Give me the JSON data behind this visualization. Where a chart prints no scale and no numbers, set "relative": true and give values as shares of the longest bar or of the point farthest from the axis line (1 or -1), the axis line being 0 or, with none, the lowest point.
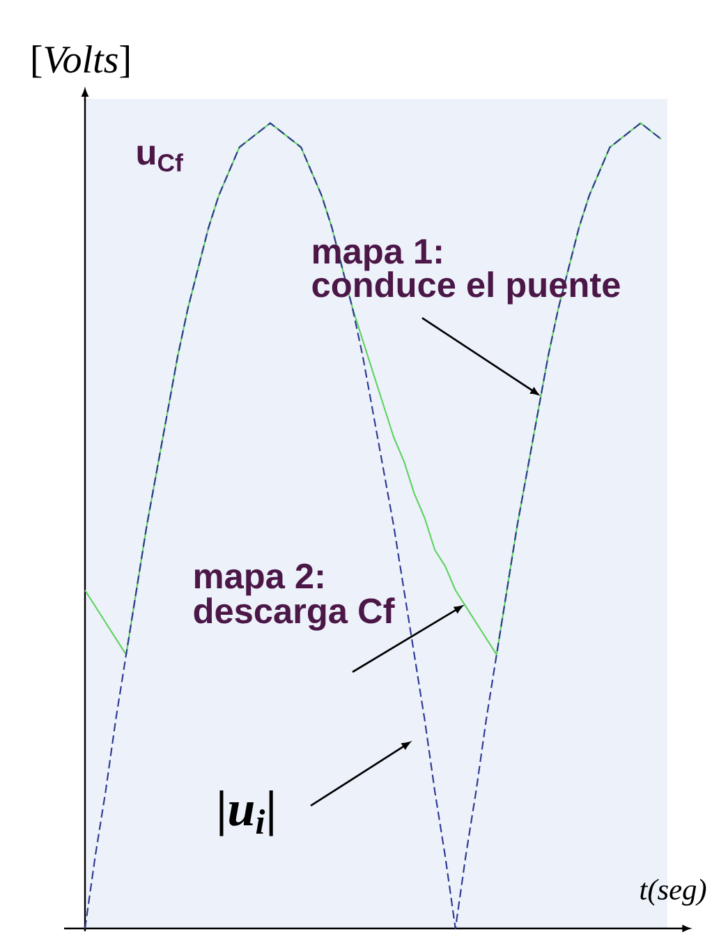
{
  "chart_data": {
    "type": "line",
    "relative": true,
    "xlabel": "t(seg)",
    "ylabel": "[*Volts*]",
    "marker": "none",
    "categories": [
      null,
      null,
      null,
      null,
      null,
      null,
      null,
      null,
      null,
      null,
      null,
      null,
      null,
      null,
      null,
      null,
      null,
      null,
      null,
      null,
      null,
      null,
      null,
      null,
      null,
      null,
      null,
      null,
      null,
      null,
      null,
      null,
      null,
      null,
      null,
      null,
      null,
      null,
      null,
      null,
      null,
      null,
      null,
      null,
      null,
      null,
      null,
      null,
      null,
      null,
      null,
      null,
      null,
      null,
      null,
      null,
      null
    ],
    "series": [
      {
        "name": "u$_{Cf}$",
        "color": "#5fd35f",
        "line_style": "solid",
        "values": [
          0.42,
          0.4,
          0.38,
          0.36,
          0.34,
          0.42,
          0.5,
          0.57,
          0.64,
          0.71,
          0.77,
          0.82,
          0.87,
          0.91,
          0.94,
          0.97,
          0.98,
          0.99,
          1,
          0.99,
          0.98,
          0.97,
          0.94,
          0.91,
          0.87,
          0.82,
          0.77,
          0.73,
          0.69,
          0.65,
          0.61,
          0.58,
          0.54,
          0.51,
          0.47,
          0.45,
          0.42,
          0.4,
          0.38,
          0.36,
          0.34,
          0.42,
          0.5,
          0.57,
          0.64,
          0.71,
          0.77,
          0.82,
          0.87,
          0.91,
          0.94,
          0.97,
          0.98,
          0.99,
          1,
          0.99,
          0.98
        ]
      },
      {
        "name": "|u$_{i}$|",
        "color": "#2b3990",
        "line_style": "dashed",
        "values": [
          0,
          0.09,
          0.17,
          0.26,
          0.34,
          0.42,
          0.5,
          0.57,
          0.64,
          0.71,
          0.77,
          0.82,
          0.87,
          0.91,
          0.94,
          0.97,
          0.98,
          0.99,
          1,
          0.99,
          0.98,
          0.97,
          0.94,
          0.91,
          0.87,
          0.82,
          0.77,
          0.71,
          0.64,
          0.57,
          0.5,
          0.42,
          0.34,
          0.26,
          0.17,
          0.09,
          0,
          0.09,
          0.17,
          0.26,
          0.34,
          0.42,
          0.5,
          0.57,
          0.64,
          0.71,
          0.77,
          0.82,
          0.87,
          0.91,
          0.94,
          0.97,
          0.98,
          0.99,
          1,
          0.99,
          0.98
        ]
      }
    ],
    "annotations": [
      "mapa 1:",
      "conduce el puente",
      "mapa 2:",
      "descarga Cf"
    ]
  }
}
